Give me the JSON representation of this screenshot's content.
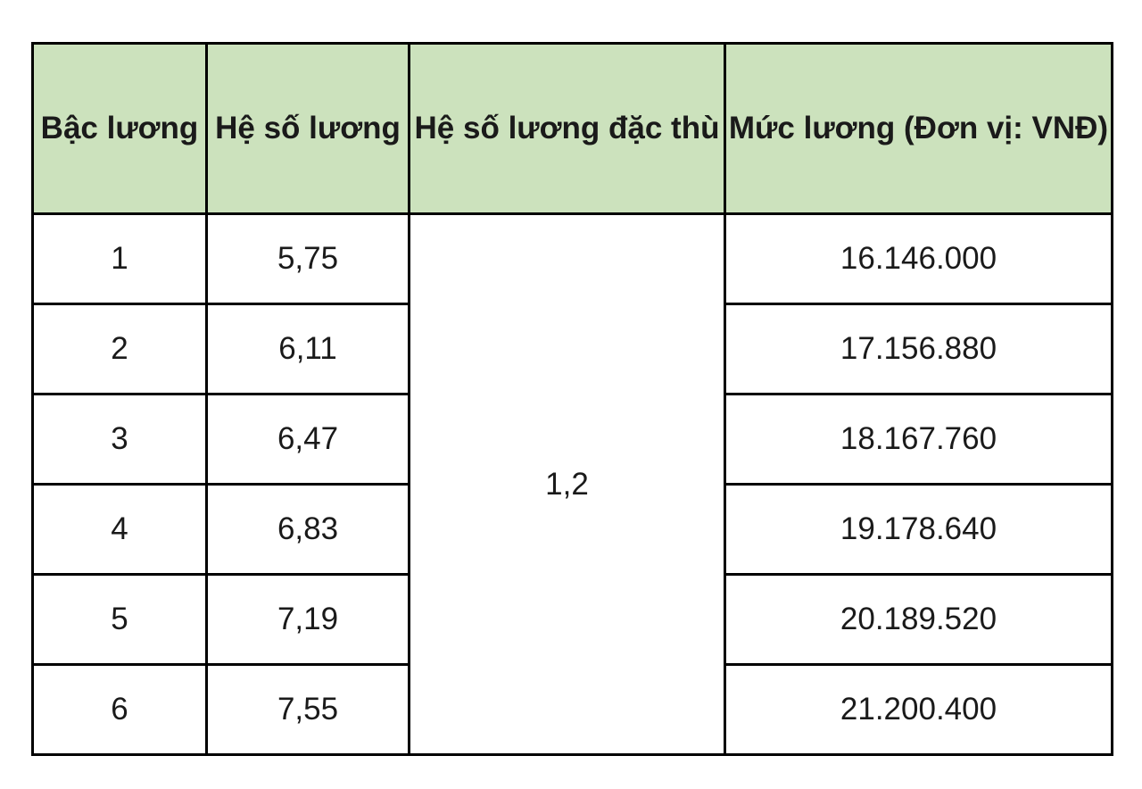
{
  "table": {
    "headers": [
      "Bậc lương",
      "Hệ số lương",
      "Hệ số lương đặc thù",
      "Mức lương (Đơn vị: VNĐ)"
    ],
    "header_color": "#cce2bd",
    "special_coefficient": "1,2",
    "rows": [
      {
        "level": "1",
        "coefficient": "5,75",
        "salary": "16.146.000"
      },
      {
        "level": "2",
        "coefficient": "6,11",
        "salary": "17.156.880"
      },
      {
        "level": "3",
        "coefficient": "6,47",
        "salary": "18.167.760"
      },
      {
        "level": "4",
        "coefficient": "6,83",
        "salary": "19.178.640"
      },
      {
        "level": "5",
        "coefficient": "7,19",
        "salary": "20.189.520"
      },
      {
        "level": "6",
        "coefficient": "7,55",
        "salary": "21.200.400"
      }
    ]
  }
}
